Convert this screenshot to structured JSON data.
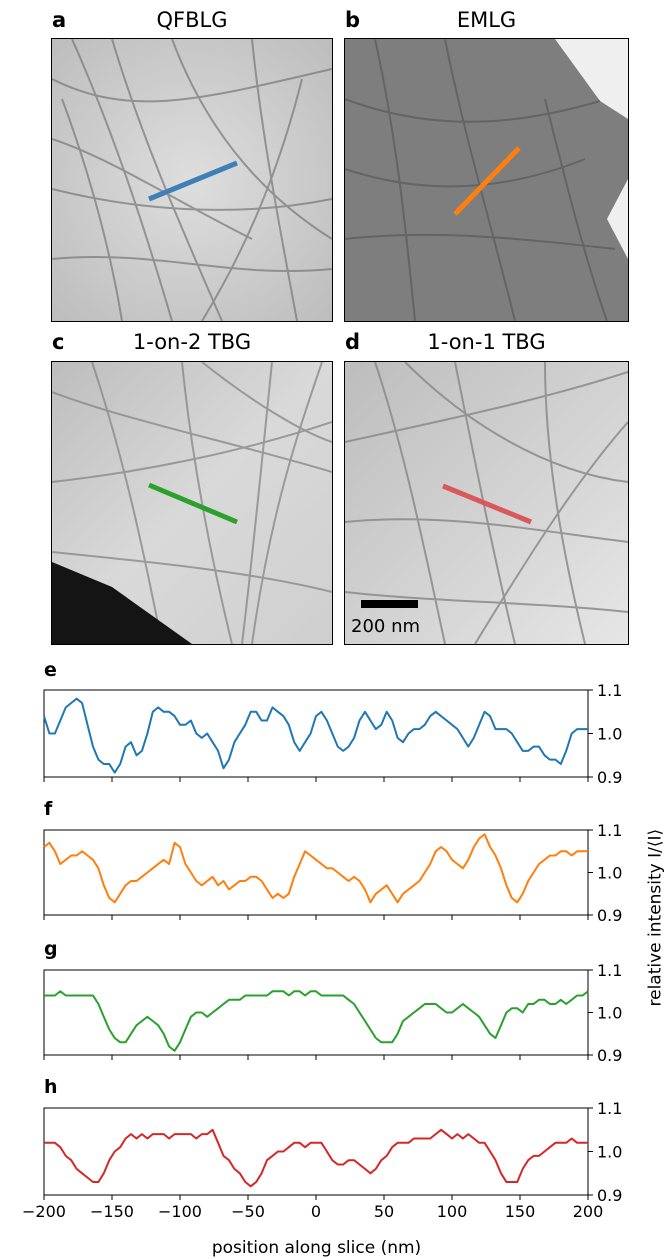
{
  "panels": [
    {
      "letter": "a",
      "title": "QFBLG"
    },
    {
      "letter": "b",
      "title": "EMLG"
    },
    {
      "letter": "c",
      "title": "1-on-2 TBG"
    },
    {
      "letter": "d",
      "title": "1-on-1 TBG"
    }
  ],
  "scale_bar": {
    "label": "200 nm"
  },
  "colors": {
    "e": "#1f77b4",
    "f": "#ff7f0e",
    "g": "#2ca02c",
    "h": "#d62728"
  },
  "chart_data": [
    {
      "type": "line",
      "panel": "e",
      "x": [
        -200,
        -196,
        -192,
        -188,
        -184,
        -180,
        -176,
        -172,
        -168,
        -164,
        -160,
        -156,
        -152,
        -148,
        -144,
        -140,
        -136,
        -132,
        -128,
        -124,
        -120,
        -116,
        -112,
        -108,
        -104,
        -100,
        -96,
        -92,
        -88,
        -84,
        -80,
        -76,
        -72,
        -68,
        -64,
        -60,
        -56,
        -52,
        -48,
        -44,
        -40,
        -36,
        -32,
        -28,
        -24,
        -20,
        -16,
        -12,
        -8,
        -4,
        0,
        4,
        8,
        12,
        16,
        20,
        24,
        28,
        32,
        36,
        40,
        44,
        48,
        52,
        56,
        60,
        64,
        68,
        72,
        76,
        80,
        84,
        88,
        92,
        96,
        100,
        104,
        108,
        112,
        116,
        120,
        124,
        128,
        132,
        136,
        140,
        144,
        148,
        152,
        156,
        160,
        164,
        168,
        172,
        176,
        180,
        184,
        188,
        192,
        196,
        200
      ],
      "y": [
        1.04,
        1.0,
        1.0,
        1.03,
        1.06,
        1.07,
        1.08,
        1.07,
        1.02,
        0.97,
        0.94,
        0.93,
        0.93,
        0.91,
        0.93,
        0.97,
        0.98,
        0.95,
        0.96,
        1.0,
        1.05,
        1.06,
        1.05,
        1.05,
        1.04,
        1.02,
        1.02,
        1.03,
        1.0,
        0.99,
        1.0,
        0.98,
        0.96,
        0.92,
        0.94,
        0.98,
        1.0,
        1.02,
        1.05,
        1.05,
        1.03,
        1.03,
        1.06,
        1.05,
        1.04,
        1.02,
        0.98,
        0.96,
        0.98,
        1.0,
        1.04,
        1.05,
        1.03,
        1.0,
        0.97,
        0.96,
        0.97,
        0.99,
        1.03,
        1.05,
        1.03,
        1.01,
        1.02,
        1.05,
        1.03,
        0.99,
        0.98,
        1.0,
        1.01,
        1.01,
        1.02,
        1.04,
        1.05,
        1.04,
        1.03,
        1.02,
        1.01,
        0.99,
        0.97,
        0.99,
        1.02,
        1.05,
        1.04,
        1.01,
        1.01,
        1.01,
        1.0,
        0.98,
        0.96,
        0.96,
        0.97,
        0.97,
        0.95,
        0.94,
        0.94,
        0.93,
        0.96,
        1.0,
        1.01,
        1.01,
        1.01
      ],
      "ylim": [
        0.9,
        1.1
      ],
      "yticks": [
        "0.9",
        "1.0",
        "1.1"
      ]
    },
    {
      "type": "line",
      "panel": "f",
      "x": [
        -200,
        -196,
        -192,
        -188,
        -184,
        -180,
        -176,
        -172,
        -168,
        -164,
        -160,
        -156,
        -152,
        -148,
        -144,
        -140,
        -136,
        -132,
        -128,
        -124,
        -120,
        -116,
        -112,
        -108,
        -104,
        -100,
        -96,
        -92,
        -88,
        -84,
        -80,
        -76,
        -72,
        -68,
        -64,
        -60,
        -56,
        -52,
        -48,
        -44,
        -40,
        -36,
        -32,
        -28,
        -24,
        -20,
        -16,
        -12,
        -8,
        -4,
        0,
        4,
        8,
        12,
        16,
        20,
        24,
        28,
        32,
        36,
        40,
        44,
        48,
        52,
        56,
        60,
        64,
        68,
        72,
        76,
        80,
        84,
        88,
        92,
        96,
        100,
        104,
        108,
        112,
        116,
        120,
        124,
        128,
        132,
        136,
        140,
        144,
        148,
        152,
        156,
        160,
        164,
        168,
        172,
        176,
        180,
        184,
        188,
        192,
        196,
        200
      ],
      "y": [
        1.06,
        1.07,
        1.05,
        1.02,
        1.03,
        1.04,
        1.04,
        1.05,
        1.04,
        1.03,
        1.01,
        0.97,
        0.94,
        0.93,
        0.95,
        0.97,
        0.98,
        0.98,
        0.99,
        1.0,
        1.01,
        1.02,
        1.03,
        1.02,
        1.07,
        1.06,
        1.02,
        1.0,
        0.98,
        0.97,
        0.98,
        0.99,
        0.97,
        0.98,
        0.96,
        0.97,
        0.98,
        0.98,
        0.99,
        0.99,
        0.98,
        0.96,
        0.94,
        0.95,
        0.94,
        0.95,
        0.99,
        1.02,
        1.05,
        1.04,
        1.03,
        1.02,
        1.01,
        1.01,
        1.0,
        0.99,
        0.98,
        0.99,
        0.98,
        0.96,
        0.93,
        0.95,
        0.96,
        0.97,
        0.95,
        0.93,
        0.95,
        0.96,
        0.97,
        0.98,
        1.0,
        1.02,
        1.05,
        1.06,
        1.05,
        1.03,
        1.02,
        1.01,
        1.03,
        1.06,
        1.08,
        1.09,
        1.06,
        1.04,
        1.01,
        0.97,
        0.94,
        0.93,
        0.95,
        0.98,
        1.0,
        1.02,
        1.03,
        1.04,
        1.04,
        1.05,
        1.05,
        1.04,
        1.05,
        1.05,
        1.05
      ],
      "ylim": [
        0.9,
        1.1
      ],
      "yticks": [
        "0.9",
        "1.0",
        "1.1"
      ]
    },
    {
      "type": "line",
      "panel": "g",
      "x": [
        -200,
        -196,
        -192,
        -188,
        -184,
        -180,
        -176,
        -172,
        -168,
        -164,
        -160,
        -156,
        -152,
        -148,
        -144,
        -140,
        -136,
        -132,
        -128,
        -124,
        -120,
        -116,
        -112,
        -108,
        -104,
        -100,
        -96,
        -92,
        -88,
        -84,
        -80,
        -76,
        -72,
        -68,
        -64,
        -60,
        -56,
        -52,
        -48,
        -44,
        -40,
        -36,
        -32,
        -28,
        -24,
        -20,
        -16,
        -12,
        -8,
        -4,
        0,
        4,
        8,
        12,
        16,
        20,
        24,
        28,
        32,
        36,
        40,
        44,
        48,
        52,
        56,
        60,
        64,
        68,
        72,
        76,
        80,
        84,
        88,
        92,
        96,
        100,
        104,
        108,
        112,
        116,
        120,
        124,
        128,
        132,
        136,
        140,
        144,
        148,
        152,
        156,
        160,
        164,
        168,
        172,
        176,
        180,
        184,
        188,
        192,
        196,
        200
      ],
      "y": [
        1.04,
        1.04,
        1.04,
        1.05,
        1.04,
        1.04,
        1.04,
        1.04,
        1.04,
        1.04,
        1.02,
        0.99,
        0.96,
        0.94,
        0.93,
        0.93,
        0.95,
        0.97,
        0.98,
        0.99,
        0.98,
        0.97,
        0.95,
        0.92,
        0.91,
        0.93,
        0.96,
        0.99,
        1.0,
        1.0,
        0.99,
        1.0,
        1.01,
        1.02,
        1.03,
        1.03,
        1.03,
        1.04,
        1.04,
        1.04,
        1.04,
        1.04,
        1.05,
        1.05,
        1.05,
        1.04,
        1.05,
        1.05,
        1.04,
        1.05,
        1.05,
        1.04,
        1.04,
        1.04,
        1.04,
        1.04,
        1.03,
        1.02,
        1.0,
        0.98,
        0.96,
        0.94,
        0.93,
        0.93,
        0.93,
        0.95,
        0.98,
        0.99,
        1.0,
        1.01,
        1.02,
        1.02,
        1.02,
        1.01,
        1.0,
        1.0,
        1.01,
        1.02,
        1.01,
        1.0,
        0.99,
        0.97,
        0.95,
        0.94,
        0.97,
        1.0,
        1.01,
        1.01,
        1.0,
        1.02,
        1.02,
        1.03,
        1.03,
        1.02,
        1.02,
        1.03,
        1.02,
        1.03,
        1.04,
        1.04,
        1.05
      ],
      "ylim": [
        0.9,
        1.1
      ],
      "yticks": [
        "0.9",
        "1.0",
        "1.1"
      ]
    },
    {
      "type": "line",
      "panel": "h",
      "x": [
        -200,
        -196,
        -192,
        -188,
        -184,
        -180,
        -176,
        -172,
        -168,
        -164,
        -160,
        -156,
        -152,
        -148,
        -144,
        -140,
        -136,
        -132,
        -128,
        -124,
        -120,
        -116,
        -112,
        -108,
        -104,
        -100,
        -96,
        -92,
        -88,
        -84,
        -80,
        -76,
        -72,
        -68,
        -64,
        -60,
        -56,
        -52,
        -48,
        -44,
        -40,
        -36,
        -32,
        -28,
        -24,
        -20,
        -16,
        -12,
        -8,
        -4,
        0,
        4,
        8,
        12,
        16,
        20,
        24,
        28,
        32,
        36,
        40,
        44,
        48,
        52,
        56,
        60,
        64,
        68,
        72,
        76,
        80,
        84,
        88,
        92,
        96,
        100,
        104,
        108,
        112,
        116,
        120,
        124,
        128,
        132,
        136,
        140,
        144,
        148,
        152,
        156,
        160,
        164,
        168,
        172,
        176,
        180,
        184,
        188,
        192,
        196,
        200
      ],
      "y": [
        1.02,
        1.02,
        1.02,
        1.01,
        0.99,
        0.98,
        0.96,
        0.95,
        0.94,
        0.93,
        0.93,
        0.95,
        0.98,
        1.0,
        1.01,
        1.03,
        1.04,
        1.03,
        1.04,
        1.03,
        1.04,
        1.04,
        1.04,
        1.03,
        1.04,
        1.04,
        1.04,
        1.04,
        1.03,
        1.04,
        1.04,
        1.05,
        1.02,
        0.99,
        0.98,
        0.96,
        0.95,
        0.93,
        0.92,
        0.93,
        0.95,
        0.98,
        0.99,
        1.0,
        1.0,
        1.01,
        1.02,
        1.02,
        1.01,
        1.02,
        1.02,
        1.02,
        1.0,
        0.98,
        0.97,
        0.97,
        0.98,
        0.98,
        0.97,
        0.96,
        0.95,
        0.96,
        0.98,
        0.99,
        1.01,
        1.02,
        1.02,
        1.02,
        1.03,
        1.03,
        1.03,
        1.03,
        1.04,
        1.05,
        1.04,
        1.03,
        1.04,
        1.03,
        1.04,
        1.03,
        1.02,
        1.02,
        1.0,
        0.98,
        0.95,
        0.93,
        0.93,
        0.93,
        0.96,
        0.98,
        0.99,
        0.99,
        1.0,
        1.01,
        1.02,
        1.02,
        1.02,
        1.03,
        1.02,
        1.02,
        1.02
      ],
      "ylim": [
        0.9,
        1.1
      ],
      "yticks": [
        "0.9",
        "1.0",
        "1.1"
      ]
    }
  ],
  "xaxis": {
    "label": "position along slice (nm)",
    "ticks": [
      -200,
      -150,
      -100,
      -50,
      0,
      50,
      100,
      150,
      200
    ],
    "tick_labels": [
      "−200",
      "−150",
      "−100",
      "−50",
      "0",
      "50",
      "100",
      "150",
      "200"
    ],
    "xlim": [
      -200,
      200
    ]
  },
  "yaxis": {
    "label": "relative intensity I/⟨I⟩"
  }
}
